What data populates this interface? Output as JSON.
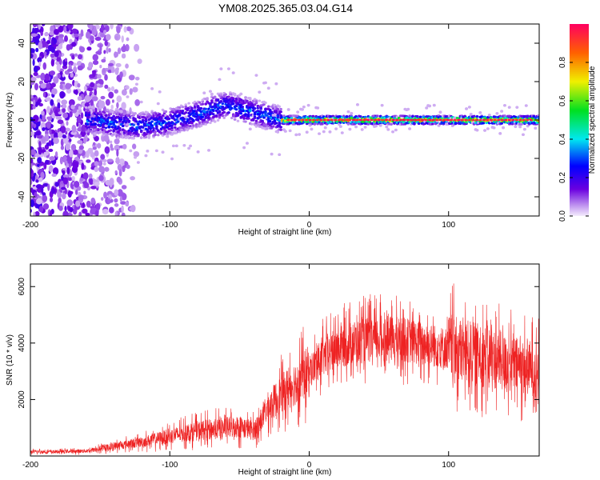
{
  "title": "YM08.2025.365.03.04.G14",
  "colors": {
    "snr_line": "#ee2222",
    "spectrogram_low": "#c8a8f0",
    "spectrogram_high": "#ff2040"
  },
  "chart_data": [
    {
      "type": "heatmap",
      "name": "spectrogram",
      "xlabel": "Height of straight line (km)",
      "ylabel": "Frequency (Hz)",
      "xlim": [
        -200,
        165
      ],
      "ylim": [
        -50,
        50
      ],
      "xticks": [
        -200,
        -100,
        0,
        100
      ],
      "yticks": [
        -40,
        -20,
        0,
        20,
        40
      ],
      "colorbar": {
        "label": "Normalized spectral amplitude",
        "range": [
          0,
          1
        ],
        "ticks": [
          0.0,
          0.2,
          0.4,
          0.6,
          0.8
        ],
        "tick_labels": [
          "0.0",
          "0.2",
          "0.4",
          "0.6",
          "0.8"
        ]
      },
      "ridge": {
        "description_of_peak_frequency_vs_height": "noise scattered below -130 km, ridge near 0 Hz rising to ~8 Hz around -60 km, stable ~0 Hz from -20 km to 165 km",
        "x": [
          -155,
          -140,
          -120,
          -100,
          -80,
          -60,
          -45,
          -30,
          -20,
          0,
          40,
          80,
          120,
          160
        ],
        "y": [
          0,
          -2,
          -3,
          -1,
          3,
          8,
          5,
          2,
          0,
          0,
          0,
          0,
          0,
          0
        ]
      }
    },
    {
      "type": "line",
      "name": "snr",
      "xlabel": "Height of straight line (km)",
      "ylabel": "SNR (10 * v/v)",
      "xlim": [
        -200,
        165
      ],
      "ylim": [
        0,
        6800
      ],
      "xticks": [
        -200,
        -100,
        0,
        100
      ],
      "yticks": [
        2000,
        4000,
        6000
      ],
      "series": [
        {
          "name": "SNR",
          "x": [
            -200,
            -180,
            -160,
            -150,
            -140,
            -130,
            -120,
            -110,
            -100,
            -90,
            -80,
            -70,
            -60,
            -50,
            -40,
            -35,
            -30,
            -20,
            -10,
            0,
            10,
            20,
            30,
            40,
            50,
            60,
            70,
            80,
            90,
            100,
            110,
            120,
            130,
            140,
            150,
            160,
            165
          ],
          "values": [
            150,
            150,
            180,
            250,
            350,
            420,
            500,
            600,
            700,
            800,
            900,
            950,
            1000,
            1050,
            900,
            1200,
            1700,
            2200,
            2600,
            3000,
            3500,
            3800,
            4000,
            4100,
            4150,
            4150,
            4100,
            4000,
            3900,
            3800,
            3700,
            3600,
            3500,
            3300,
            3200,
            3100,
            3000
          ]
        }
      ]
    }
  ]
}
